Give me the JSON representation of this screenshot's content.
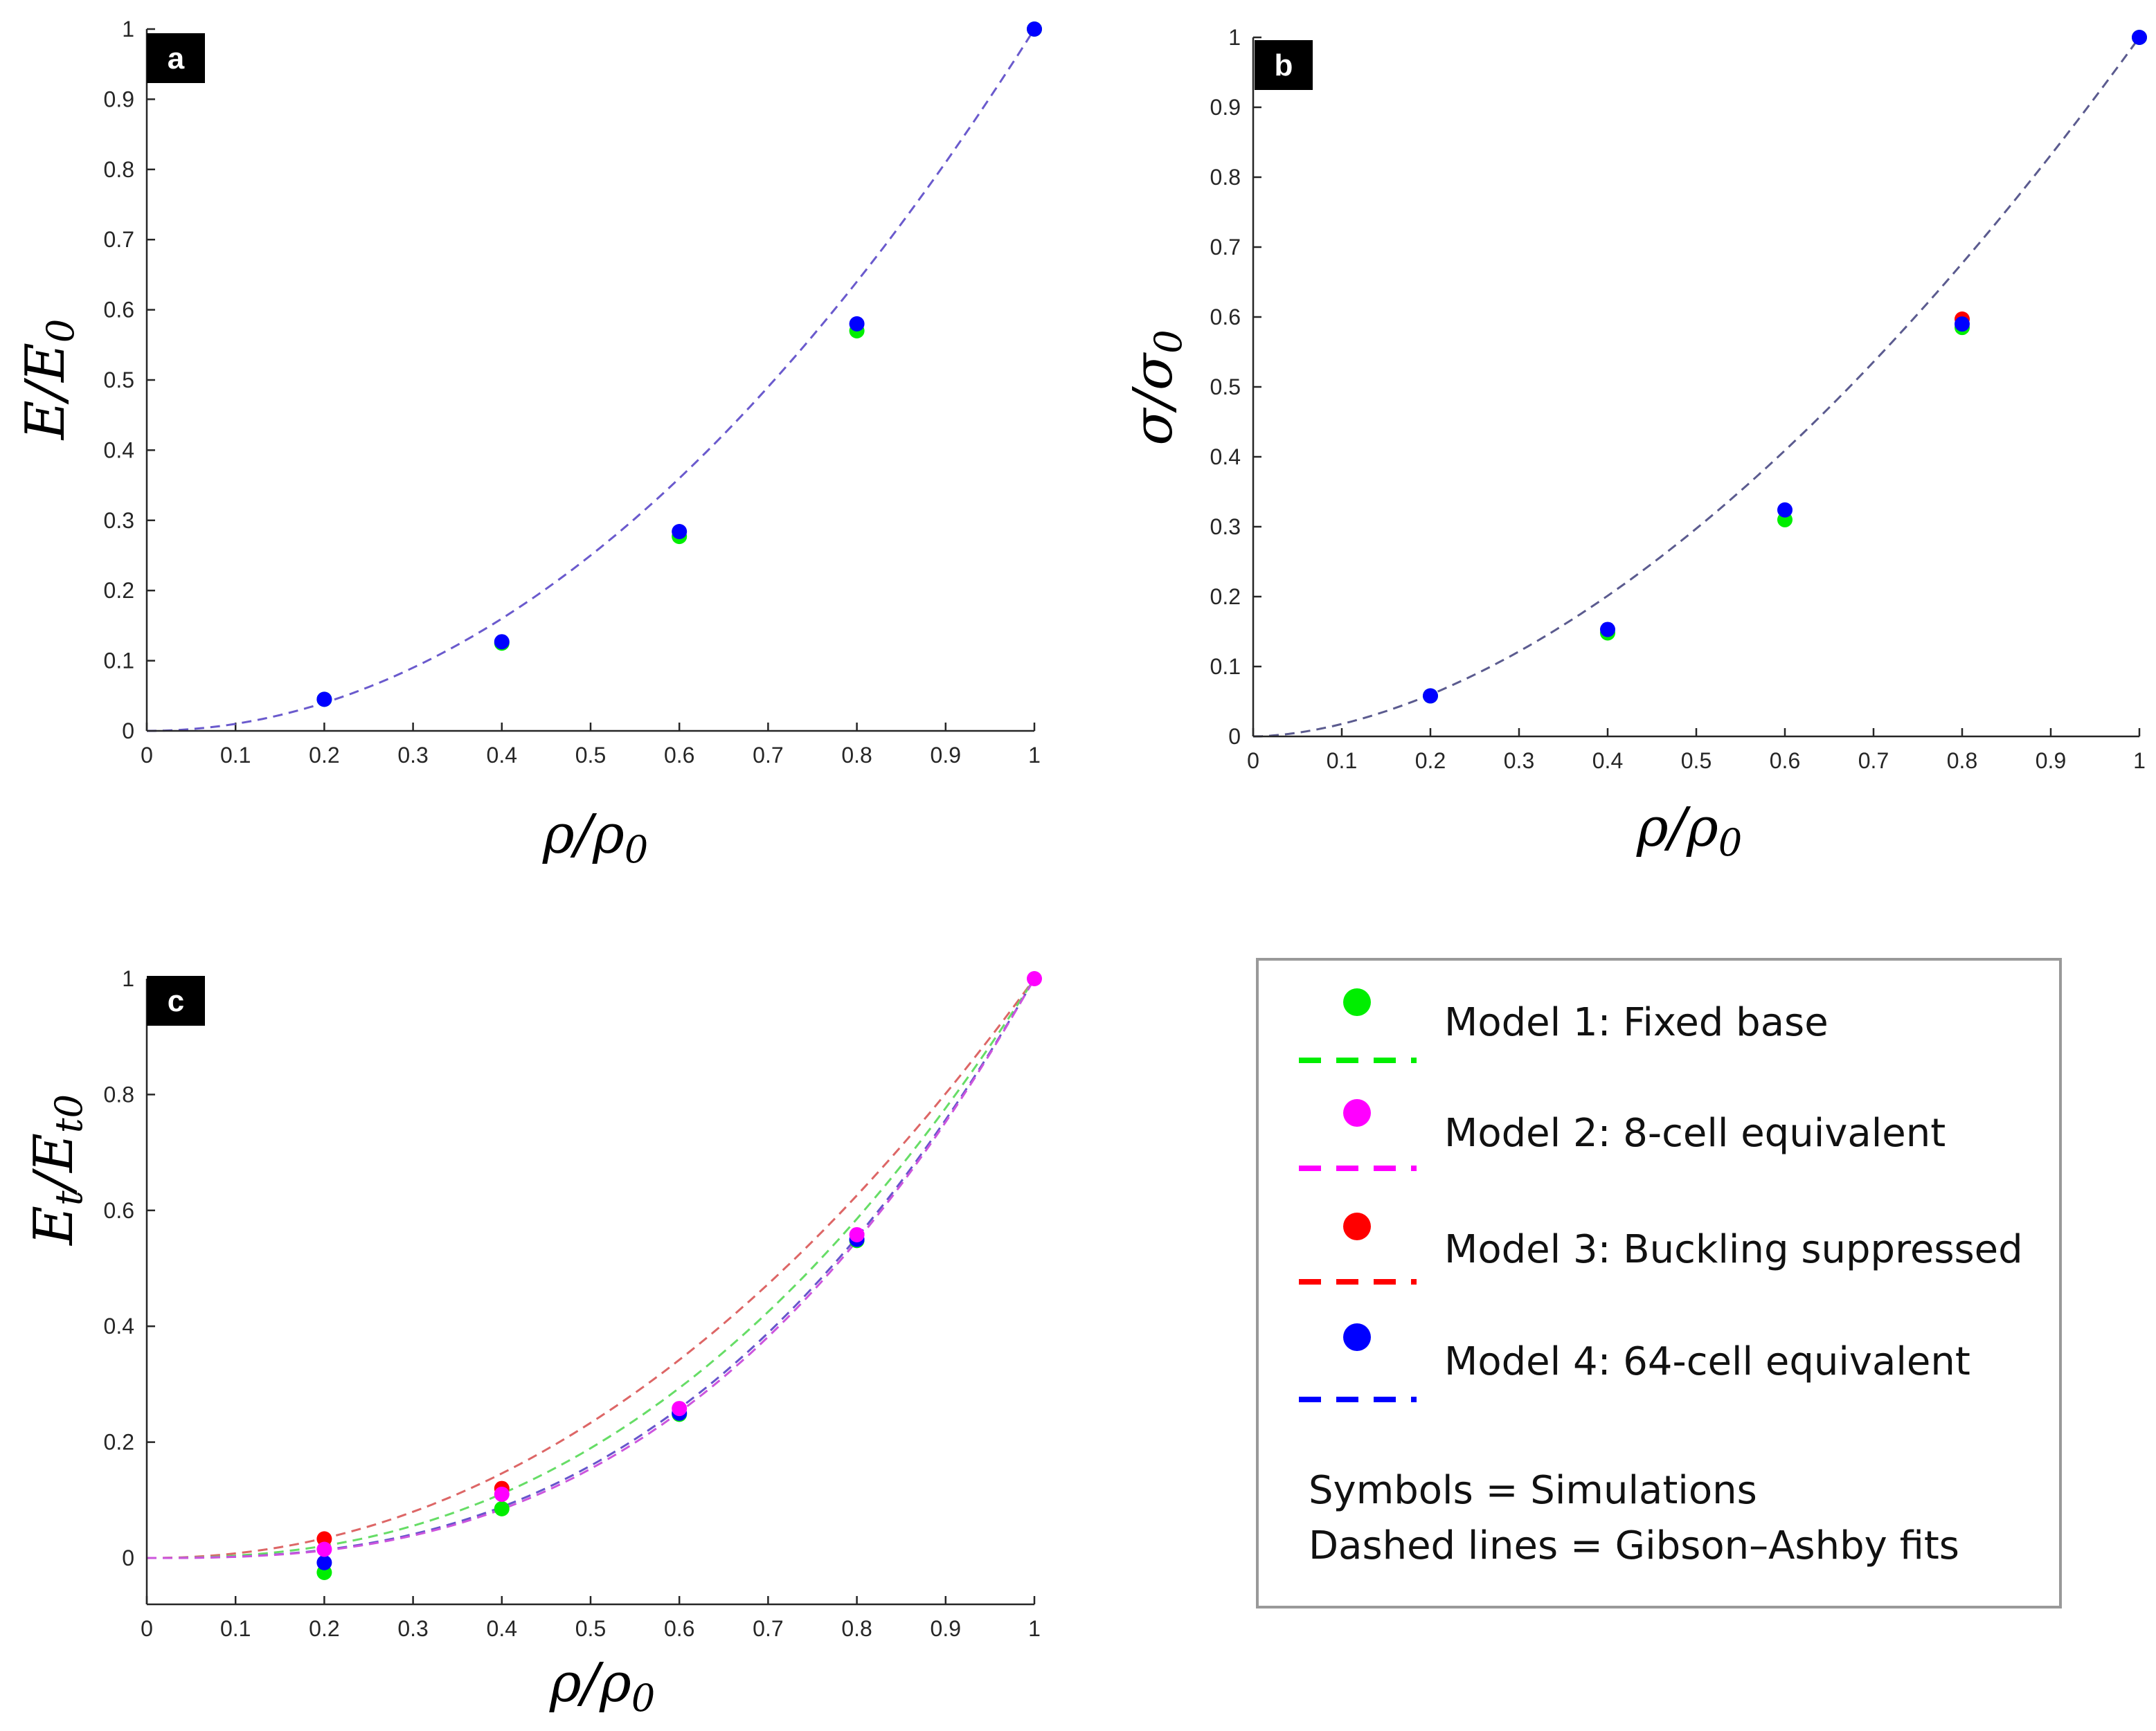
{
  "colors": {
    "model1": "#00ee00",
    "model2": "#ff00ff",
    "model3": "#ff0000",
    "model4": "#0000ff",
    "fit_a": "#6a5acd",
    "fit_b": "#5b5b8f",
    "fit_c_model1": "#66dd66",
    "fit_c_model2": "#cc55dd",
    "fit_c_model3": "#dd6666",
    "fit_c_model4": "#6655cc"
  },
  "chart_data": [
    {
      "id": "a",
      "panel_label": "a",
      "type": "scatter",
      "xlabel": "ρ/ρ0",
      "ylabel": "E/E0",
      "xlim": [
        0,
        1
      ],
      "ylim": [
        0,
        1
      ],
      "xticks": [
        "0",
        "0.1",
        "0.2",
        "0.3",
        "0.4",
        "0.5",
        "0.6",
        "0.7",
        "0.8",
        "0.9",
        "1"
      ],
      "yticks": [
        "0",
        "0.1",
        "0.2",
        "0.3",
        "0.4",
        "0.5",
        "0.6",
        "0.7",
        "0.8",
        "0.9",
        "1"
      ],
      "series": [
        {
          "name": "Model 1: Fixed base",
          "color_key": "model1",
          "x": [
            0.2,
            0.4,
            0.6,
            0.8,
            1.0
          ],
          "y": [
            0.045,
            0.125,
            0.277,
            0.57,
            1.0
          ]
        },
        {
          "name": "Model 4: 64-cell equivalent",
          "color_key": "model4",
          "x": [
            0.2,
            0.4,
            0.6,
            0.8,
            1.0
          ],
          "y": [
            0.045,
            0.127,
            0.284,
            0.58,
            1.0
          ]
        }
      ],
      "fits": [
        {
          "color_key": "fit_a",
          "exponent": 2
        }
      ]
    },
    {
      "id": "b",
      "panel_label": "b",
      "type": "scatter",
      "xlabel": "ρ/ρ0",
      "ylabel": "σ/σ0",
      "xlim": [
        0,
        1
      ],
      "ylim": [
        0,
        1
      ],
      "xticks": [
        "0",
        "0.1",
        "0.2",
        "0.3",
        "0.4",
        "0.5",
        "0.6",
        "0.7",
        "0.8",
        "0.9",
        "1"
      ],
      "yticks": [
        "0",
        "0.1",
        "0.2",
        "0.3",
        "0.4",
        "0.5",
        "0.6",
        "0.7",
        "0.8",
        "0.9",
        "1"
      ],
      "series": [
        {
          "name": "Model 1: Fixed base",
          "color_key": "model1",
          "x": [
            0.2,
            0.4,
            0.6,
            0.8,
            1.0
          ],
          "y": [
            0.058,
            0.148,
            0.31,
            0.585,
            1.0
          ]
        },
        {
          "name": "Model 3: Buckling suppressed",
          "color_key": "model3",
          "x": [
            0.8
          ],
          "y": [
            0.597
          ]
        },
        {
          "name": "Model 4: 64-cell equivalent",
          "color_key": "model4",
          "x": [
            0.2,
            0.4,
            0.6,
            0.8,
            1.0
          ],
          "y": [
            0.058,
            0.153,
            0.324,
            0.59,
            1.0
          ]
        }
      ],
      "fits": [
        {
          "color_key": "fit_b",
          "exponent": 1.75
        }
      ]
    },
    {
      "id": "c",
      "panel_label": "c",
      "type": "scatter",
      "xlabel": "ρ/ρ0",
      "ylabel": "Et/Et0",
      "xlim": [
        0,
        1
      ],
      "ylim": [
        -0.08,
        1
      ],
      "xticks": [
        "0",
        "0.1",
        "0.2",
        "0.3",
        "0.4",
        "0.5",
        "0.6",
        "0.7",
        "0.8",
        "0.9",
        "1"
      ],
      "yticks": [
        "0",
        "0.2",
        "0.4",
        "0.6",
        "0.8",
        "1"
      ],
      "series": [
        {
          "name": "Model 3: Buckling suppressed",
          "color_key": "model3",
          "x": [
            0.2,
            0.4
          ],
          "y": [
            0.033,
            0.12
          ]
        },
        {
          "name": "Model 1: Fixed base",
          "color_key": "model1",
          "x": [
            0.2,
            0.4,
            0.6,
            0.8
          ],
          "y": [
            -0.025,
            0.085,
            0.248,
            0.548
          ]
        },
        {
          "name": "Model 4: 64-cell equivalent",
          "color_key": "model4",
          "x": [
            0.2,
            0.6,
            0.8
          ],
          "y": [
            -0.008,
            0.25,
            0.55
          ]
        },
        {
          "name": "Model 2: 8-cell equivalent",
          "color_key": "model2",
          "x": [
            0.2,
            0.4,
            0.6,
            0.8,
            1.0
          ],
          "y": [
            0.015,
            0.11,
            0.258,
            0.558,
            1.0
          ]
        }
      ],
      "fits": [
        {
          "color_key": "fit_c_model3",
          "exponent": 2.1
        },
        {
          "color_key": "fit_c_model1",
          "exponent": 2.4
        },
        {
          "color_key": "fit_c_model4",
          "exponent": 2.65
        },
        {
          "color_key": "fit_c_model2",
          "exponent": 2.7
        }
      ]
    }
  ],
  "legend": {
    "entries": [
      {
        "label": "Model 1: Fixed base",
        "color_key": "model1"
      },
      {
        "label": "Model 2: 8-cell equivalent",
        "color_key": "model2"
      },
      {
        "label": "Model 3: Buckling suppressed",
        "color_key": "model3"
      },
      {
        "label": "Model 4: 64-cell equivalent",
        "color_key": "model4"
      }
    ],
    "note_line1": "Symbols = Simulations",
    "note_line2": "Dashed lines = Gibson–Ashby fits"
  }
}
